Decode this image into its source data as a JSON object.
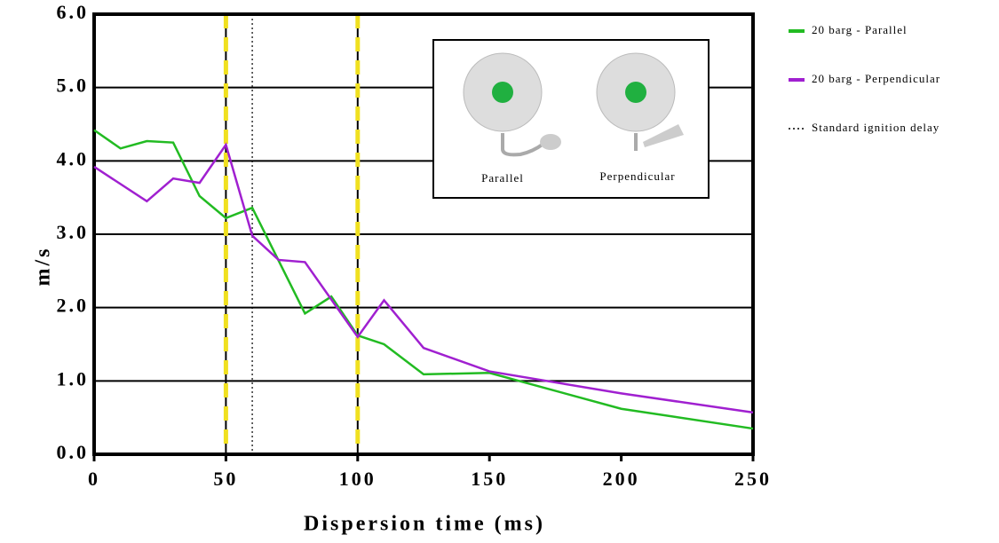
{
  "chart_data": {
    "type": "line",
    "y_label": "m/s",
    "x_label": "Dispersion time (ms)",
    "xlim": [
      0,
      250
    ],
    "ylim": [
      0,
      6
    ],
    "xticks": [
      0,
      50,
      100,
      150,
      200,
      250
    ],
    "yticks": [
      {
        "value": 0,
        "label": "0.0"
      },
      {
        "value": 1,
        "label": "1.0"
      },
      {
        "value": 2,
        "label": "2.0"
      },
      {
        "value": 3,
        "label": "3.0"
      },
      {
        "value": 4,
        "label": "4.0"
      },
      {
        "value": 5,
        "label": "5.0"
      },
      {
        "value": 6,
        "label": "6.0"
      }
    ],
    "grid": true,
    "vertical_grid": [
      50,
      100
    ],
    "highlight_color": "#f0e020",
    "series": [
      {
        "name": "20 barg - Parallel",
        "color": "#22bb22",
        "x": [
          0,
          10,
          20,
          30,
          40,
          50,
          60,
          80,
          90,
          100,
          110,
          125,
          150,
          200,
          250
        ],
        "values": [
          4.42,
          4.17,
          4.27,
          4.25,
          3.52,
          3.22,
          3.36,
          1.92,
          2.15,
          1.62,
          1.5,
          1.09,
          1.11,
          0.62,
          0.35
        ]
      },
      {
        "name": "20 barg - Perpendicular",
        "color": "#a020d0",
        "x": [
          0,
          20,
          30,
          40,
          50,
          60,
          70,
          80,
          100,
          110,
          125,
          150,
          200,
          250
        ],
        "values": [
          3.92,
          3.45,
          3.76,
          3.7,
          4.22,
          2.98,
          2.65,
          2.62,
          1.6,
          2.1,
          1.45,
          1.13,
          0.83,
          0.57
        ]
      }
    ],
    "reference_line": {
      "name": "Standard ignition delay",
      "x": 60
    },
    "legend": "outside-right",
    "inset": {
      "labels": [
        "Parallel",
        "Perpendicular"
      ]
    }
  }
}
